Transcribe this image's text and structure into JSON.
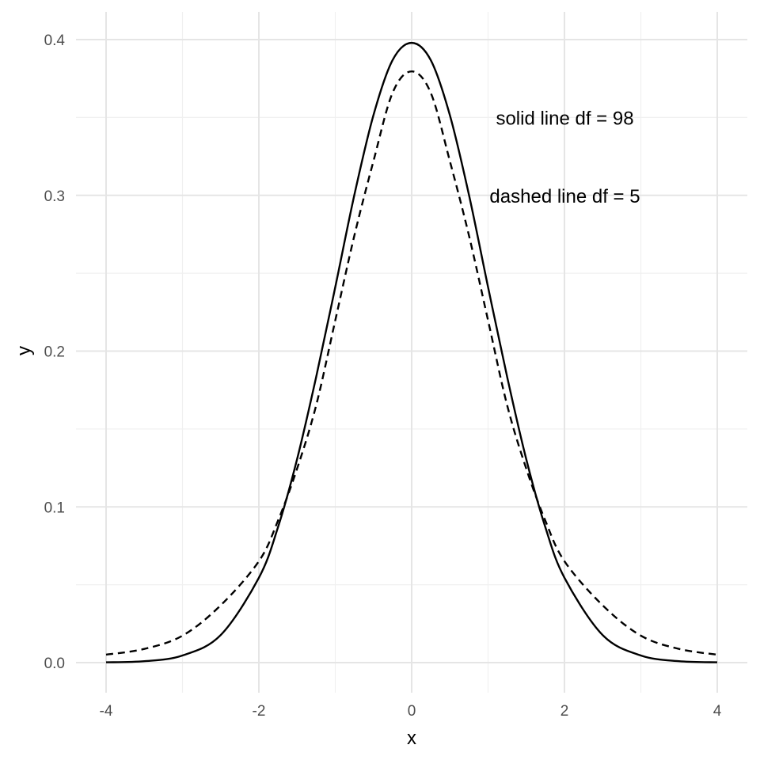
{
  "chart_data": {
    "type": "line",
    "title": "",
    "xlabel": "x",
    "ylabel": "y",
    "xlim": [
      -4,
      4
    ],
    "ylim": [
      0,
      0.4
    ],
    "x_ticks": [
      -4,
      -2,
      0,
      2,
      4
    ],
    "x_tick_labels": [
      "-4",
      "-2",
      "0",
      "2",
      "4"
    ],
    "y_ticks": [
      0,
      0.1,
      0.2,
      0.3,
      0.4
    ],
    "y_tick_labels": [
      "0.0",
      "0.1",
      "0.2",
      "0.3",
      "0.4"
    ],
    "grid": true,
    "legend": "none",
    "x": [
      -4,
      -3.5,
      -3,
      -2.5,
      -2,
      -1.75,
      -1.5,
      -1.25,
      -1,
      -0.75,
      -0.5,
      -0.25,
      0,
      0.25,
      0.5,
      0.75,
      1,
      1.25,
      1.5,
      1.75,
      2,
      2.5,
      3,
      3.5,
      4
    ],
    "series": [
      {
        "line_style": "solid",
        "values": [
          0.0002,
          0.0009,
          0.0046,
          0.0177,
          0.0545,
          0.0869,
          0.1306,
          0.1834,
          0.2411,
          0.3003,
          0.3515,
          0.3868,
          0.3979,
          0.3868,
          0.3515,
          0.3003,
          0.2411,
          0.1834,
          0.1306,
          0.0869,
          0.0545,
          0.0177,
          0.0046,
          0.0009,
          0.0002
        ]
      },
      {
        "line_style": "dashed",
        "values": [
          0.0051,
          0.0088,
          0.0173,
          0.0368,
          0.0651,
          0.0911,
          0.1245,
          0.1652,
          0.2197,
          0.2742,
          0.322,
          0.3658,
          0.3796,
          0.3658,
          0.322,
          0.2742,
          0.2197,
          0.1652,
          0.1245,
          0.0911,
          0.0651,
          0.0368,
          0.0173,
          0.0088,
          0.0051
        ]
      }
    ],
    "annotations": [
      {
        "text": "solid line df = 98",
        "x": 1.0,
        "y": 0.35
      },
      {
        "text": "dashed line df = 5",
        "x": 1.0,
        "y": 0.3
      }
    ]
  }
}
